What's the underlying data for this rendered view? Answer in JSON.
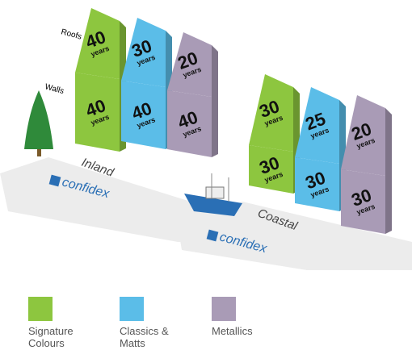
{
  "axis_labels": {
    "roofs": "Roofs",
    "walls": "Walls"
  },
  "unit": "years",
  "brand": "confidex",
  "groups": [
    {
      "name": "Inland",
      "columns": [
        {
          "color": "#8dc63f",
          "roof": "40",
          "wall": "40"
        },
        {
          "color": "#5bbde8",
          "roof": "30",
          "wall": "40"
        },
        {
          "color": "#a99bb6",
          "roof": "20",
          "wall": "40"
        }
      ]
    },
    {
      "name": "Coastal",
      "columns": [
        {
          "color": "#8dc63f",
          "roof": "30",
          "wall": "30"
        },
        {
          "color": "#5bbde8",
          "roof": "25",
          "wall": "30"
        },
        {
          "color": "#a99bb6",
          "roof": "20",
          "wall": "30"
        }
      ]
    }
  ],
  "legend": [
    {
      "label": "Signature Colours",
      "color": "#8dc63f"
    },
    {
      "label": "Classics & Matts",
      "color": "#5bbde8"
    },
    {
      "label": "Metallics",
      "color": "#a99bb6"
    }
  ]
}
